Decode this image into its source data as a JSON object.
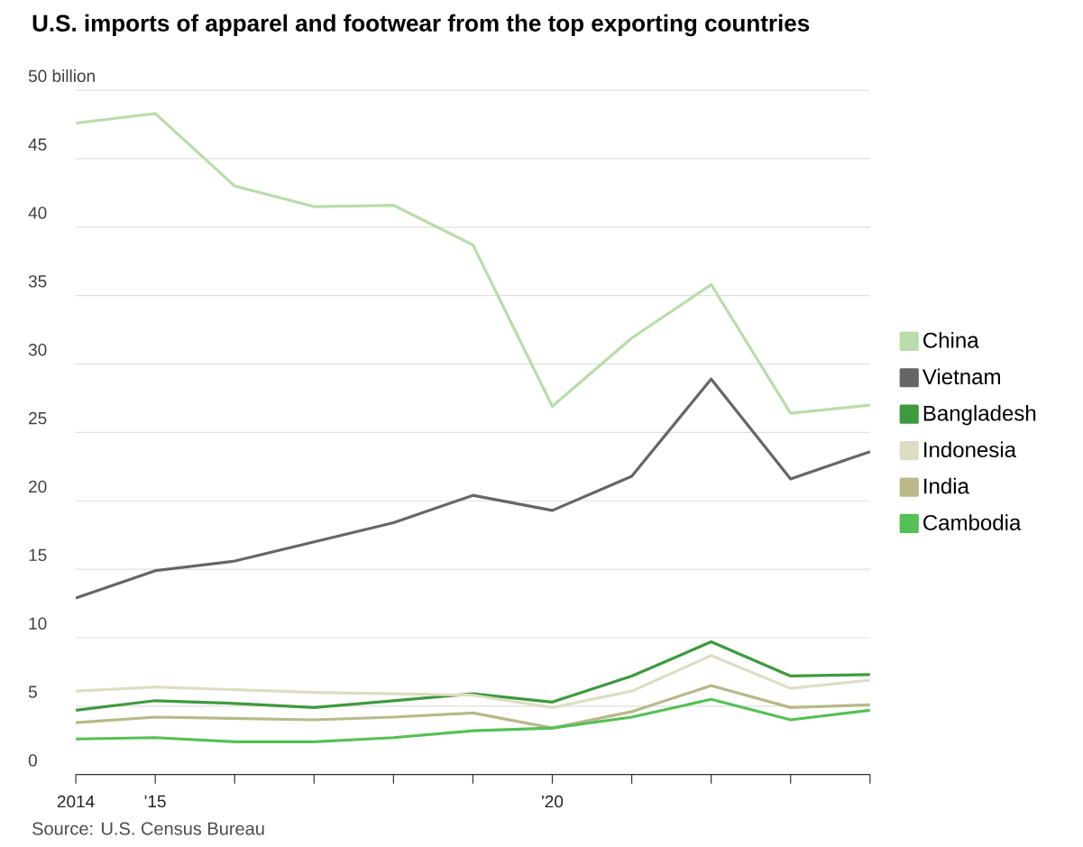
{
  "chart_data": {
    "type": "line",
    "title": "U.S. imports of apparel and footwear from the top exporting countries",
    "x": [
      2014,
      2015,
      2016,
      2017,
      2018,
      2019,
      2020,
      2021,
      2022,
      2023,
      2024
    ],
    "series": [
      {
        "name": "China",
        "color": "#b9dcaa",
        "values": [
          47.6,
          48.3,
          43.0,
          41.5,
          41.6,
          38.7,
          26.9,
          31.9,
          35.8,
          26.4,
          27.0
        ]
      },
      {
        "name": "Vietnam",
        "color": "#666666",
        "values": [
          12.9,
          14.9,
          15.6,
          17.0,
          18.4,
          20.4,
          19.3,
          21.8,
          28.9,
          21.6,
          23.6
        ]
      },
      {
        "name": "Bangladesh",
        "color": "#3d9a3d",
        "values": [
          4.7,
          5.4,
          5.2,
          4.9,
          5.4,
          5.9,
          5.3,
          7.2,
          9.7,
          7.2,
          7.3
        ]
      },
      {
        "name": "Indonesia",
        "color": "#ddddc4",
        "values": [
          6.1,
          6.4,
          6.2,
          6.0,
          5.9,
          5.8,
          4.9,
          6.1,
          8.7,
          6.3,
          6.9
        ]
      },
      {
        "name": "India",
        "color": "#b8b889",
        "values": [
          3.8,
          4.2,
          4.1,
          4.0,
          4.2,
          4.5,
          3.4,
          4.6,
          6.5,
          4.9,
          5.1
        ]
      },
      {
        "name": "Cambodia",
        "color": "#55c055",
        "values": [
          2.6,
          2.7,
          2.4,
          2.4,
          2.7,
          3.2,
          3.4,
          4.2,
          5.5,
          4.0,
          4.7
        ]
      }
    ],
    "xlim": [
      2014,
      2024
    ],
    "xticks": [
      {
        "value": 2014,
        "label": "2014"
      },
      {
        "value": 2015,
        "label": "'15"
      },
      {
        "value": 2016,
        "label": null
      },
      {
        "value": 2017,
        "label": null
      },
      {
        "value": 2018,
        "label": null
      },
      {
        "value": 2019,
        "label": null
      },
      {
        "value": 2020,
        "label": "'20"
      },
      {
        "value": 2021,
        "label": null
      },
      {
        "value": 2022,
        "label": null
      },
      {
        "value": 2023,
        "label": null
      },
      {
        "value": 2024,
        "label": null
      }
    ],
    "ylim": [
      0,
      50
    ],
    "yticks": [
      0,
      5,
      10,
      15,
      20,
      25,
      30,
      35,
      40,
      45,
      {
        "value": 50,
        "label": "50 billion"
      }
    ],
    "grid": "y",
    "legend": "right",
    "marker": "none",
    "line_style": "solid",
    "annotations": [
      "Source: U.S. Census Bureau"
    ]
  }
}
